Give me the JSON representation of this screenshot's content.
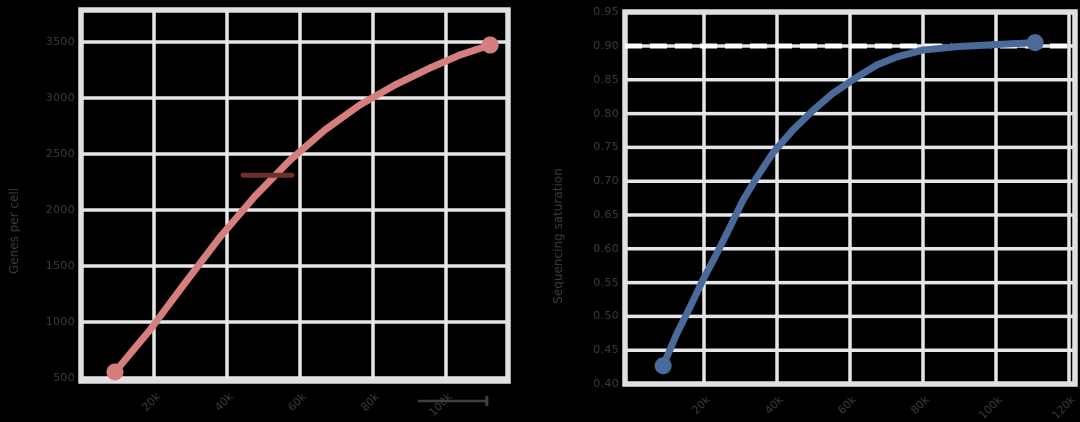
{
  "page": {
    "background_color": "#000000",
    "grid_color": "#e6e6e6",
    "spine_color": "#e0e0e0",
    "tick_text_color": "#3c3c3c"
  },
  "chart_data": [
    {
      "id": "genes-per-cell",
      "type": "line",
      "title": "",
      "xlabel": "",
      "ylabel": "Genes per cell",
      "legend": "none",
      "grid": "on",
      "color": "#d67e7e",
      "xlim": [
        0,
        117000
      ],
      "ylim": [
        475,
        3785
      ],
      "xticks": [
        {
          "v": 20000,
          "label": "20k"
        },
        {
          "v": 40000,
          "label": "40k"
        },
        {
          "v": 60000,
          "label": "60k"
        },
        {
          "v": 80000,
          "label": "80k"
        },
        {
          "v": 100000,
          "label": "100k"
        }
      ],
      "yticks": [
        {
          "v": 3500,
          "label": "3500"
        },
        {
          "v": 3000,
          "label": "3000"
        },
        {
          "v": 2500,
          "label": "2500"
        },
        {
          "v": 2000,
          "label": "2000"
        },
        {
          "v": 1500,
          "label": "1500"
        },
        {
          "v": 1000,
          "label": "1000"
        },
        {
          "v": 500,
          "label": "500"
        }
      ],
      "x": [
        9300,
        18900,
        28500,
        38100,
        47700,
        57300,
        66800,
        76400,
        86000,
        95600,
        103800,
        112100
      ],
      "y": [
        554,
        929,
        1348,
        1759,
        2125,
        2446,
        2714,
        2938,
        3116,
        3268,
        3384,
        3473
      ],
      "annotations": [
        {
          "type": "segment",
          "x1": 44400,
          "x2": 57800,
          "y": 2310,
          "color": "#6e2f2f"
        },
        {
          "type": "axis-scale-line",
          "x1": 92300,
          "x2": 111200,
          "color": "#404040"
        }
      ]
    },
    {
      "id": "sequencing-saturation",
      "type": "line",
      "title": "",
      "xlabel": "",
      "ylabel": "Sequencing saturation",
      "legend": "none",
      "grid": "on",
      "color": "#4a6a9a",
      "xlim": [
        0,
        125000
      ],
      "ylim": [
        0.39,
        0.97
      ],
      "xticks": [
        {
          "v": 20000,
          "label": "20k"
        },
        {
          "v": 40000,
          "label": "40k"
        },
        {
          "v": 60000,
          "label": "60k"
        },
        {
          "v": 80000,
          "label": "80k"
        },
        {
          "v": 100000,
          "label": "100k"
        },
        {
          "v": 120000,
          "label": "120k"
        }
      ],
      "yticks": [
        {
          "v": 0.95,
          "label": "0.95"
        },
        {
          "v": 0.9,
          "label": "0.90"
        },
        {
          "v": 0.85,
          "label": "0.85"
        },
        {
          "v": 0.8,
          "label": "0.80"
        },
        {
          "v": 0.75,
          "label": "0.75"
        },
        {
          "v": 0.7,
          "label": "0.70"
        },
        {
          "v": 0.65,
          "label": "0.65"
        },
        {
          "v": 0.6,
          "label": "0.60"
        },
        {
          "v": 0.55,
          "label": "0.55"
        },
        {
          "v": 0.5,
          "label": "0.50"
        },
        {
          "v": 0.45,
          "label": "0.45"
        },
        {
          "v": 0.4,
          "label": "0.40"
        }
      ],
      "x": [
        8800,
        12600,
        16200,
        19700,
        23600,
        27100,
        30700,
        34500,
        38900,
        44400,
        49900,
        55300,
        61900,
        67400,
        72900,
        80000,
        89300,
        99700,
        110700
      ],
      "y": [
        0.427,
        0.475,
        0.514,
        0.554,
        0.594,
        0.632,
        0.672,
        0.706,
        0.742,
        0.776,
        0.805,
        0.83,
        0.854,
        0.872,
        0.884,
        0.894,
        0.899,
        0.902,
        0.905
      ],
      "annotations": [
        {
          "type": "reference-line",
          "y": 0.9,
          "color": "#ffffff",
          "style": "dashed"
        }
      ]
    }
  ]
}
